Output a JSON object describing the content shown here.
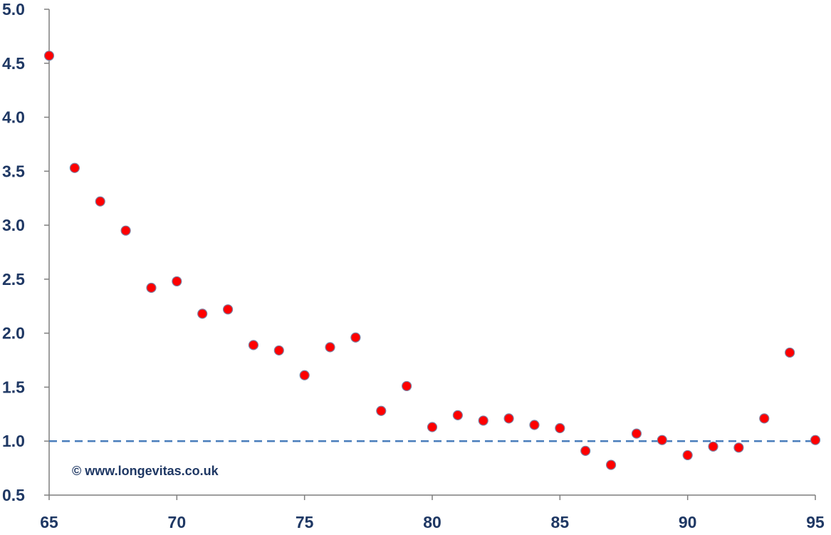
{
  "chart_data": {
    "type": "scatter",
    "title": "",
    "xlabel": "",
    "ylabel": "",
    "xlim": [
      65,
      95
    ],
    "ylim": [
      0.5,
      5.0
    ],
    "xticks": [
      65,
      70,
      75,
      80,
      85,
      90,
      95
    ],
    "yticks": [
      0.5,
      1.0,
      1.5,
      2.0,
      2.5,
      3.0,
      3.5,
      4.0,
      4.5,
      5.0
    ],
    "xtick_labels": [
      "65",
      "70",
      "75",
      "80",
      "85",
      "90",
      "95"
    ],
    "ytick_labels": [
      "0.5",
      "1.0",
      "1.5",
      "2.0",
      "2.5",
      "3.0",
      "3.5",
      "4.0",
      "4.5",
      "5.0"
    ],
    "grid": false,
    "legend": "none",
    "reference_line": {
      "y": 1.0,
      "style": "dashed",
      "color": "#4a7ebb"
    },
    "series": [
      {
        "marker_color": "#ff0000",
        "marker_edge_color": "#7f7fa0",
        "points": [
          {
            "x": 65,
            "y": 4.57
          },
          {
            "x": 66,
            "y": 3.53
          },
          {
            "x": 67,
            "y": 3.22
          },
          {
            "x": 68,
            "y": 2.95
          },
          {
            "x": 69,
            "y": 2.42
          },
          {
            "x": 70,
            "y": 2.48
          },
          {
            "x": 71,
            "y": 2.18
          },
          {
            "x": 72,
            "y": 2.22
          },
          {
            "x": 73,
            "y": 1.89
          },
          {
            "x": 74,
            "y": 1.84
          },
          {
            "x": 75,
            "y": 1.61
          },
          {
            "x": 76,
            "y": 1.87
          },
          {
            "x": 77,
            "y": 1.96
          },
          {
            "x": 78,
            "y": 1.28
          },
          {
            "x": 79,
            "y": 1.51
          },
          {
            "x": 80,
            "y": 1.13
          },
          {
            "x": 81,
            "y": 1.24
          },
          {
            "x": 82,
            "y": 1.19
          },
          {
            "x": 83,
            "y": 1.21
          },
          {
            "x": 84,
            "y": 1.15
          },
          {
            "x": 85,
            "y": 1.12
          },
          {
            "x": 86,
            "y": 0.91
          },
          {
            "x": 87,
            "y": 0.78
          },
          {
            "x": 88,
            "y": 1.07
          },
          {
            "x": 89,
            "y": 1.01
          },
          {
            "x": 90,
            "y": 0.87
          },
          {
            "x": 91,
            "y": 0.95
          },
          {
            "x": 92,
            "y": 0.94
          },
          {
            "x": 93,
            "y": 1.21
          },
          {
            "x": 94,
            "y": 1.82
          },
          {
            "x": 95,
            "y": 1.01
          }
        ]
      }
    ],
    "annotation": "© www.longevitas.co.uk"
  },
  "colors": {
    "axis": "#7f7f7f",
    "tick_text": "#1f3864",
    "marker": "#ff0000",
    "reference_line": "#4a7ebb"
  }
}
